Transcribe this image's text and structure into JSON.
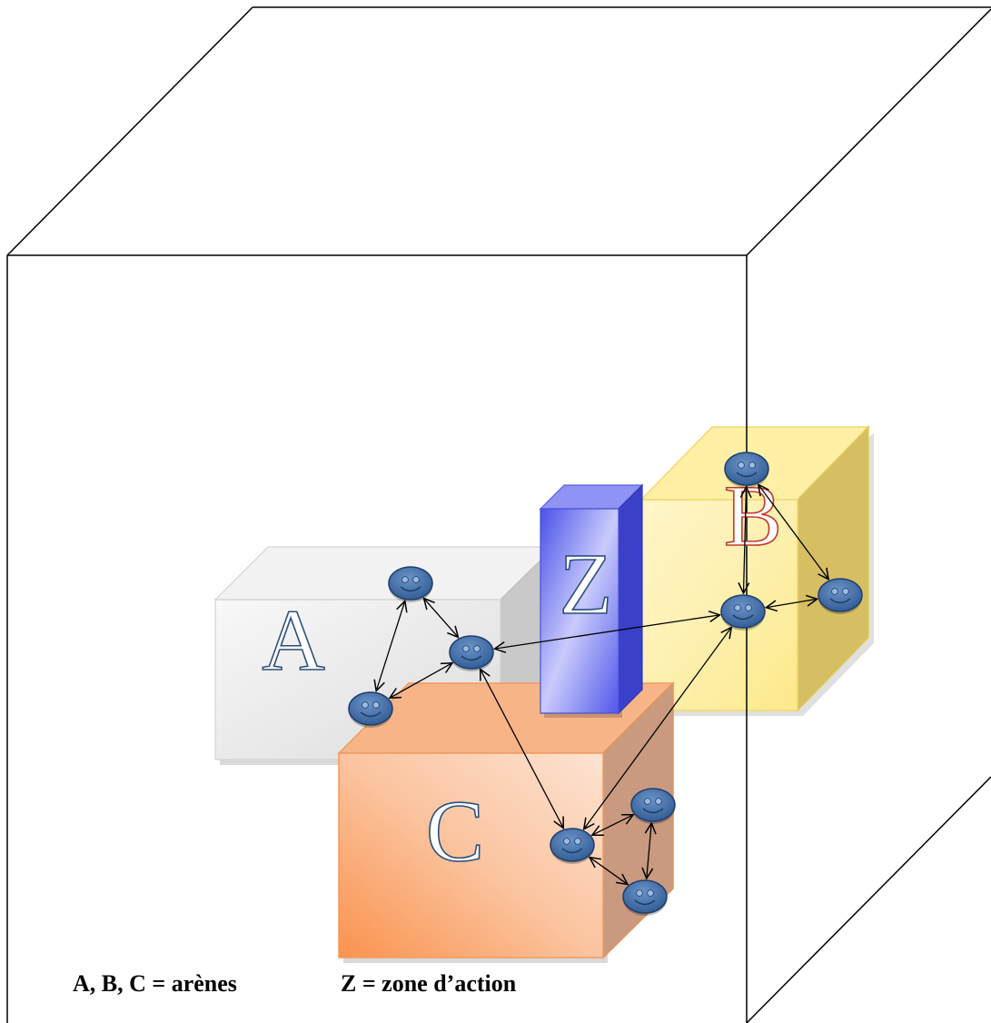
{
  "labels": {
    "a": "A",
    "b": "B",
    "c": "C",
    "z": "Z"
  },
  "legend": {
    "arenes": "A, B, C = arènes",
    "zone": "Z = zone d’action"
  },
  "colors": {
    "arena_a": "#e8e8e8",
    "arena_b": "#fde98a",
    "arena_c": "#f9a66e",
    "zone_z": "#6a6ff0",
    "actor": "#3a66a0",
    "outline": "#000000"
  },
  "icons": {
    "actor": "smiley-actor-icon",
    "link": "double-headed-arrow"
  }
}
